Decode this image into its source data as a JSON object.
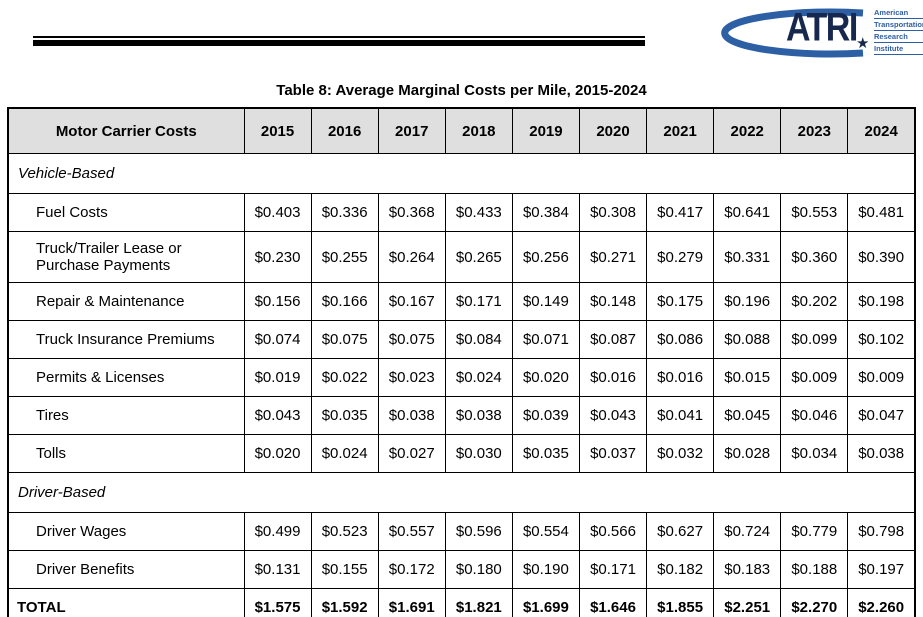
{
  "logo": {
    "acronym": "ATRI",
    "words": [
      "American",
      "Transportation",
      "Research",
      "Institute"
    ],
    "navy": "#17284e",
    "blue": "#2d5fa5"
  },
  "title": "Table 8: Average Marginal Costs per Mile, 2015-2024",
  "colors": {
    "header_bg": "#dfdfdf",
    "border": "#000000"
  },
  "table": {
    "header": {
      "label": "Motor Carrier Costs",
      "years": [
        "2015",
        "2016",
        "2017",
        "2018",
        "2019",
        "2020",
        "2021",
        "2022",
        "2023",
        "2024"
      ]
    },
    "rows": [
      {
        "type": "section",
        "label": "Vehicle-Based"
      },
      {
        "type": "item",
        "label": "Fuel Costs",
        "values": [
          "$0.403",
          "$0.336",
          "$0.368",
          "$0.433",
          "$0.384",
          "$0.308",
          "$0.417",
          "$0.641",
          "$0.553",
          "$0.481"
        ]
      },
      {
        "type": "item",
        "label": "Truck/Trailer Lease or Purchase Payments",
        "values": [
          "$0.230",
          "$0.255",
          "$0.264",
          "$0.265",
          "$0.256",
          "$0.271",
          "$0.279",
          "$0.331",
          "$0.360",
          "$0.390"
        ]
      },
      {
        "type": "item",
        "label": "Repair & Maintenance",
        "values": [
          "$0.156",
          "$0.166",
          "$0.167",
          "$0.171",
          "$0.149",
          "$0.148",
          "$0.175",
          "$0.196",
          "$0.202",
          "$0.198"
        ]
      },
      {
        "type": "item",
        "label": "Truck Insurance Premiums",
        "values": [
          "$0.074",
          "$0.075",
          "$0.075",
          "$0.084",
          "$0.071",
          "$0.087",
          "$0.086",
          "$0.088",
          "$0.099",
          "$0.102"
        ]
      },
      {
        "type": "item",
        "label": "Permits & Licenses",
        "values": [
          "$0.019",
          "$0.022",
          "$0.023",
          "$0.024",
          "$0.020",
          "$0.016",
          "$0.016",
          "$0.015",
          "$0.009",
          "$0.009"
        ]
      },
      {
        "type": "item",
        "label": "Tires",
        "values": [
          "$0.043",
          "$0.035",
          "$0.038",
          "$0.038",
          "$0.039",
          "$0.043",
          "$0.041",
          "$0.045",
          "$0.046",
          "$0.047"
        ]
      },
      {
        "type": "item",
        "label": "Tolls",
        "values": [
          "$0.020",
          "$0.024",
          "$0.027",
          "$0.030",
          "$0.035",
          "$0.037",
          "$0.032",
          "$0.028",
          "$0.034",
          "$0.038"
        ]
      },
      {
        "type": "section",
        "label": "Driver-Based"
      },
      {
        "type": "item",
        "label": "Driver Wages",
        "values": [
          "$0.499",
          "$0.523",
          "$0.557",
          "$0.596",
          "$0.554",
          "$0.566",
          "$0.627",
          "$0.724",
          "$0.779",
          "$0.798"
        ]
      },
      {
        "type": "item",
        "label": "Driver Benefits",
        "values": [
          "$0.131",
          "$0.155",
          "$0.172",
          "$0.180",
          "$0.190",
          "$0.171",
          "$0.182",
          "$0.183",
          "$0.188",
          "$0.197"
        ]
      },
      {
        "type": "total",
        "label": "TOTAL",
        "values": [
          "$1.575",
          "$1.592",
          "$1.691",
          "$1.821",
          "$1.699",
          "$1.646",
          "$1.855",
          "$2.251",
          "$2.270",
          "$2.260"
        ]
      }
    ]
  }
}
